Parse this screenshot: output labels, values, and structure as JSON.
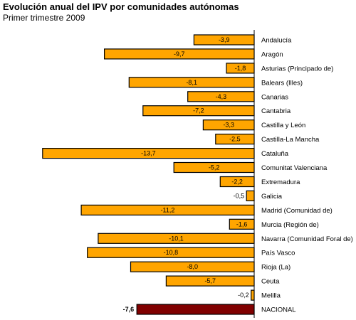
{
  "chart_data": {
    "type": "bar",
    "orientation": "horizontal",
    "title": "Evolución anual del IPV por comunidades autónomas",
    "subtitle": "Primer trimestre 2009",
    "xlabel": "",
    "ylabel": "",
    "xlim": [
      -14.2,
      0
    ],
    "grid": false,
    "colors": {
      "default": "#FFA500",
      "highlight": "#800000",
      "outline": "#000000",
      "axis": "#000000"
    },
    "categories": [
      "Andalucía",
      "Aragón",
      "Asturias (Principado de)",
      "Balears (Illes)",
      "Canarias",
      "Cantabria",
      "Castilla y León",
      "Castilla-La Mancha",
      "Cataluña",
      "Comunitat Valenciana",
      "Extremadura",
      "Galicia",
      "Madrid (Comunidad de)",
      "Murcia (Región de)",
      "Navarra (Comunidad Foral de)",
      "País Vasco",
      "Rioja (La)",
      "Ceuta",
      "Melilla",
      "NACIONAL"
    ],
    "values": [
      -3.9,
      -9.7,
      -1.8,
      -8.1,
      -4.3,
      -7.2,
      -3.3,
      -2.5,
      -13.7,
      -5.2,
      -2.2,
      -0.5,
      -11.2,
      -1.6,
      -10.1,
      -10.8,
      -8.0,
      -5.7,
      -0.2,
      -7.6
    ],
    "labels": [
      "-3,9",
      "-9,7",
      "-1,8",
      "-8,1",
      "-4,3",
      "-7,2",
      "-3,3",
      "-2,5",
      "-13,7",
      "-5,2",
      "-2,2",
      "-0,5",
      "-11,2",
      "-1,6",
      "-10,1",
      "-10,8",
      "-8,0",
      "-5,7",
      "-0,2",
      "-7,6"
    ],
    "highlight": [
      "NACIONAL"
    ]
  }
}
